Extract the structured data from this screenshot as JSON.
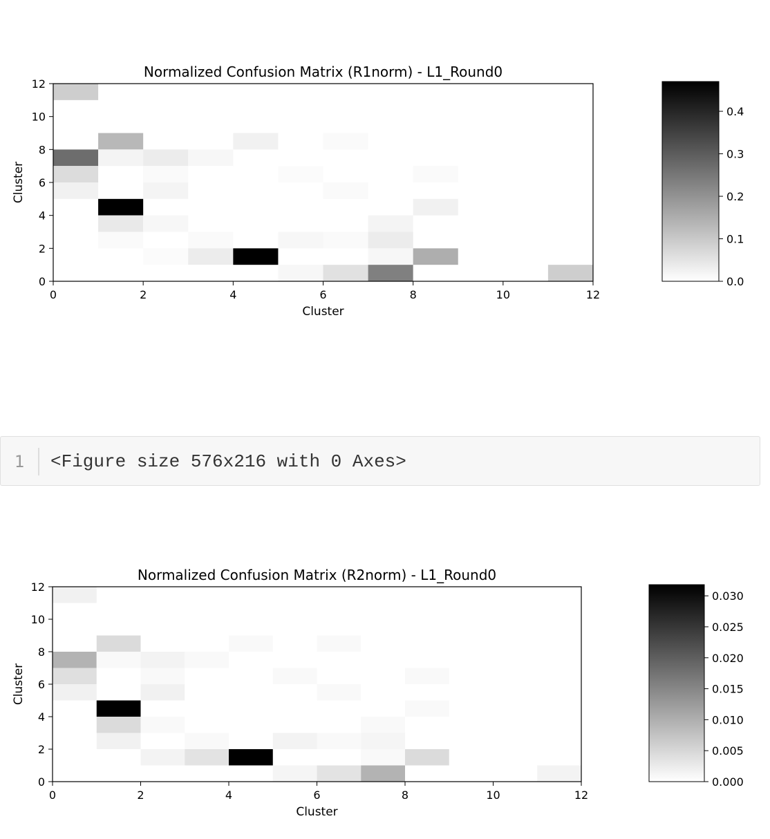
{
  "output_cell": {
    "line_number": "1",
    "text": "<Figure size 576x216 with 0 Axes>"
  },
  "chart_data": [
    {
      "type": "heatmap",
      "title": "Normalized Confusion Matrix (R1norm) - L1_Round0",
      "xlabel": "Cluster",
      "ylabel": "Cluster",
      "xlim": [
        0,
        12
      ],
      "ylim": [
        0,
        12
      ],
      "xticks": [
        "0",
        "2",
        "4",
        "6",
        "8",
        "10",
        "12"
      ],
      "yticks": [
        "0",
        "2",
        "4",
        "6",
        "8",
        "10",
        "12"
      ],
      "colormap": "greys",
      "colorbar": {
        "min": 0.0,
        "max": 0.47,
        "ticks": [
          "0.0",
          "0.1",
          "0.2",
          "0.3",
          "0.4"
        ],
        "tick_values": [
          0.0,
          0.1,
          0.2,
          0.3,
          0.4
        ]
      },
      "cells": [
        {
          "x": 0,
          "y": 11,
          "v": 0.09
        },
        {
          "x": 1,
          "y": 8,
          "v": 0.13
        },
        {
          "x": 4,
          "y": 8,
          "v": 0.025
        },
        {
          "x": 6,
          "y": 8,
          "v": 0.01
        },
        {
          "x": 0,
          "y": 7,
          "v": 0.27
        },
        {
          "x": 1,
          "y": 7,
          "v": 0.02
        },
        {
          "x": 2,
          "y": 7,
          "v": 0.035
        },
        {
          "x": 3,
          "y": 7,
          "v": 0.015
        },
        {
          "x": 0,
          "y": 6,
          "v": 0.065
        },
        {
          "x": 2,
          "y": 6,
          "v": 0.01
        },
        {
          "x": 5,
          "y": 6,
          "v": 0.008
        },
        {
          "x": 8,
          "y": 6,
          "v": 0.01
        },
        {
          "x": 0,
          "y": 5,
          "v": 0.025
        },
        {
          "x": 2,
          "y": 5,
          "v": 0.02
        },
        {
          "x": 6,
          "y": 5,
          "v": 0.01
        },
        {
          "x": 1,
          "y": 4,
          "v": 0.47
        },
        {
          "x": 8,
          "y": 4,
          "v": 0.025
        },
        {
          "x": 1,
          "y": 3,
          "v": 0.04
        },
        {
          "x": 2,
          "y": 3,
          "v": 0.015
        },
        {
          "x": 7,
          "y": 3,
          "v": 0.02
        },
        {
          "x": 1,
          "y": 2,
          "v": 0.01
        },
        {
          "x": 3,
          "y": 2,
          "v": 0.01
        },
        {
          "x": 5,
          "y": 2,
          "v": 0.015
        },
        {
          "x": 6,
          "y": 2,
          "v": 0.01
        },
        {
          "x": 7,
          "y": 2,
          "v": 0.035
        },
        {
          "x": 2,
          "y": 1,
          "v": 0.008
        },
        {
          "x": 3,
          "y": 1,
          "v": 0.035
        },
        {
          "x": 4,
          "y": 1,
          "v": 0.47
        },
        {
          "x": 7,
          "y": 1,
          "v": 0.015
        },
        {
          "x": 8,
          "y": 1,
          "v": 0.15
        },
        {
          "x": 5,
          "y": 0,
          "v": 0.015
        },
        {
          "x": 6,
          "y": 0,
          "v": 0.055
        },
        {
          "x": 7,
          "y": 0,
          "v": 0.235
        },
        {
          "x": 11,
          "y": 0,
          "v": 0.09
        }
      ]
    },
    {
      "type": "heatmap",
      "title": "Normalized Confusion Matrix (R2norm) - L1_Round0",
      "xlabel": "Cluster",
      "ylabel": "Cluster",
      "xlim": [
        0,
        12
      ],
      "ylim": [
        0,
        12
      ],
      "xticks": [
        "0",
        "2",
        "4",
        "6",
        "8",
        "10",
        "12"
      ],
      "yticks": [
        "0",
        "2",
        "4",
        "6",
        "8",
        "10",
        "12"
      ],
      "colormap": "greys",
      "colorbar": {
        "min": 0.0,
        "max": 0.0318,
        "ticks": [
          "0.000",
          "0.005",
          "0.010",
          "0.015",
          "0.020",
          "0.025",
          "0.030"
        ],
        "tick_values": [
          0.0,
          0.005,
          0.01,
          0.015,
          0.02,
          0.025,
          0.03
        ]
      },
      "cells": [
        {
          "x": 0,
          "y": 11,
          "v": 0.0018
        },
        {
          "x": 1,
          "y": 8,
          "v": 0.0045
        },
        {
          "x": 4,
          "y": 8,
          "v": 0.0008
        },
        {
          "x": 6,
          "y": 8,
          "v": 0.0008
        },
        {
          "x": 0,
          "y": 7,
          "v": 0.0095
        },
        {
          "x": 1,
          "y": 7,
          "v": 0.0008
        },
        {
          "x": 2,
          "y": 7,
          "v": 0.0015
        },
        {
          "x": 3,
          "y": 7,
          "v": 0.0008
        },
        {
          "x": 0,
          "y": 6,
          "v": 0.004
        },
        {
          "x": 2,
          "y": 6,
          "v": 0.0008
        },
        {
          "x": 5,
          "y": 6,
          "v": 0.0008
        },
        {
          "x": 8,
          "y": 6,
          "v": 0.0008
        },
        {
          "x": 0,
          "y": 5,
          "v": 0.0018
        },
        {
          "x": 2,
          "y": 5,
          "v": 0.0018
        },
        {
          "x": 6,
          "y": 5,
          "v": 0.0008
        },
        {
          "x": 1,
          "y": 4,
          "v": 0.0318
        },
        {
          "x": 8,
          "y": 4,
          "v": 0.0008
        },
        {
          "x": 1,
          "y": 3,
          "v": 0.0045
        },
        {
          "x": 2,
          "y": 3,
          "v": 0.0008
        },
        {
          "x": 7,
          "y": 3,
          "v": 0.0008
        },
        {
          "x": 1,
          "y": 2,
          "v": 0.0018
        },
        {
          "x": 3,
          "y": 2,
          "v": 0.0008
        },
        {
          "x": 5,
          "y": 2,
          "v": 0.0015
        },
        {
          "x": 6,
          "y": 2,
          "v": 0.0008
        },
        {
          "x": 7,
          "y": 2,
          "v": 0.0012
        },
        {
          "x": 2,
          "y": 1,
          "v": 0.0015
        },
        {
          "x": 3,
          "y": 1,
          "v": 0.0035
        },
        {
          "x": 4,
          "y": 1,
          "v": 0.0318
        },
        {
          "x": 7,
          "y": 1,
          "v": 0.0008
        },
        {
          "x": 8,
          "y": 1,
          "v": 0.0045
        },
        {
          "x": 5,
          "y": 0,
          "v": 0.0012
        },
        {
          "x": 6,
          "y": 0,
          "v": 0.0035
        },
        {
          "x": 7,
          "y": 0,
          "v": 0.0095
        },
        {
          "x": 11,
          "y": 0,
          "v": 0.0015
        }
      ]
    }
  ]
}
